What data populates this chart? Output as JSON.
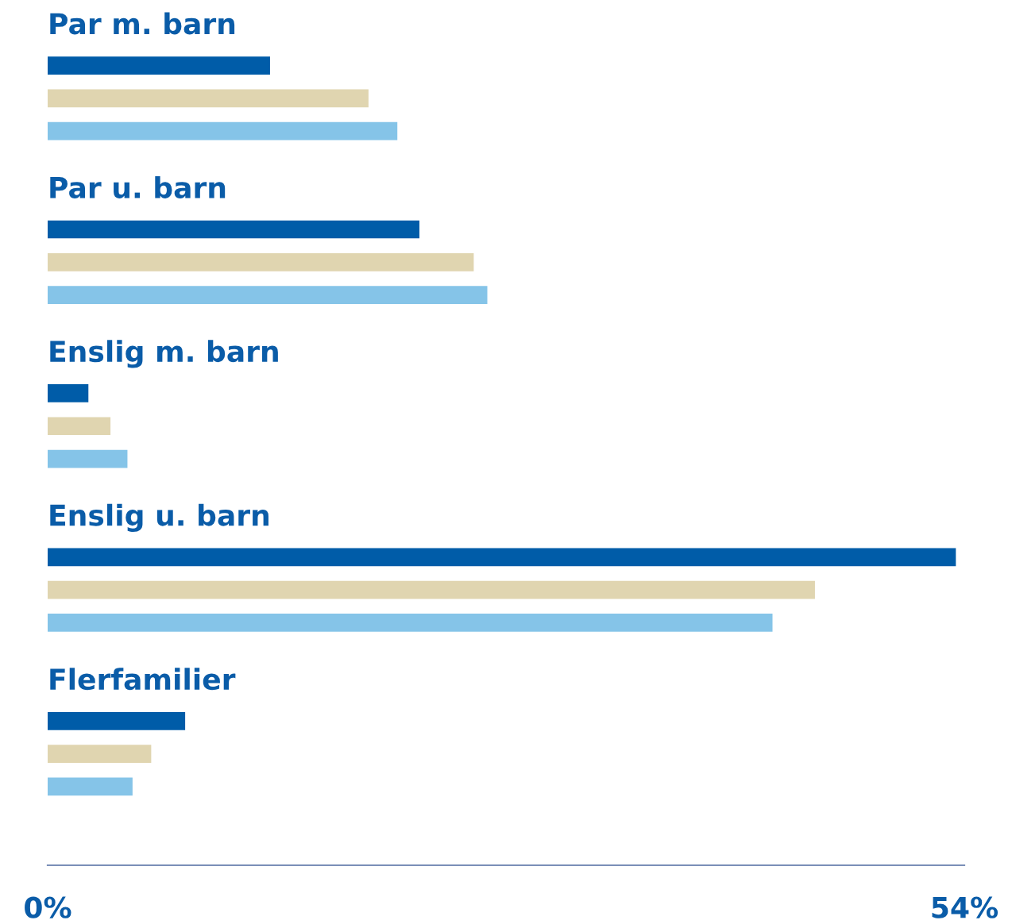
{
  "chart_data": {
    "type": "bar",
    "orientation": "horizontal",
    "categories": [
      "Par m. barn",
      "Par u. barn",
      "Enslig m. barn",
      "Enslig u. barn",
      "Flerfamilier"
    ],
    "series": [
      {
        "color": "#005ca8",
        "values": [
          13.1,
          21.9,
          2.4,
          53.5,
          8.1
        ]
      },
      {
        "color": "#e0d5b0",
        "values": [
          18.9,
          25.1,
          3.7,
          45.2,
          6.1
        ]
      },
      {
        "color": "#85c4e8",
        "values": [
          20.6,
          25.9,
          4.7,
          42.7,
          5.0
        ]
      }
    ],
    "xlim": [
      0,
      54
    ],
    "xticks": [
      {
        "value": 0,
        "label": "0%"
      },
      {
        "value": 54,
        "label": "54%"
      }
    ],
    "grid": false,
    "legend": false
  }
}
